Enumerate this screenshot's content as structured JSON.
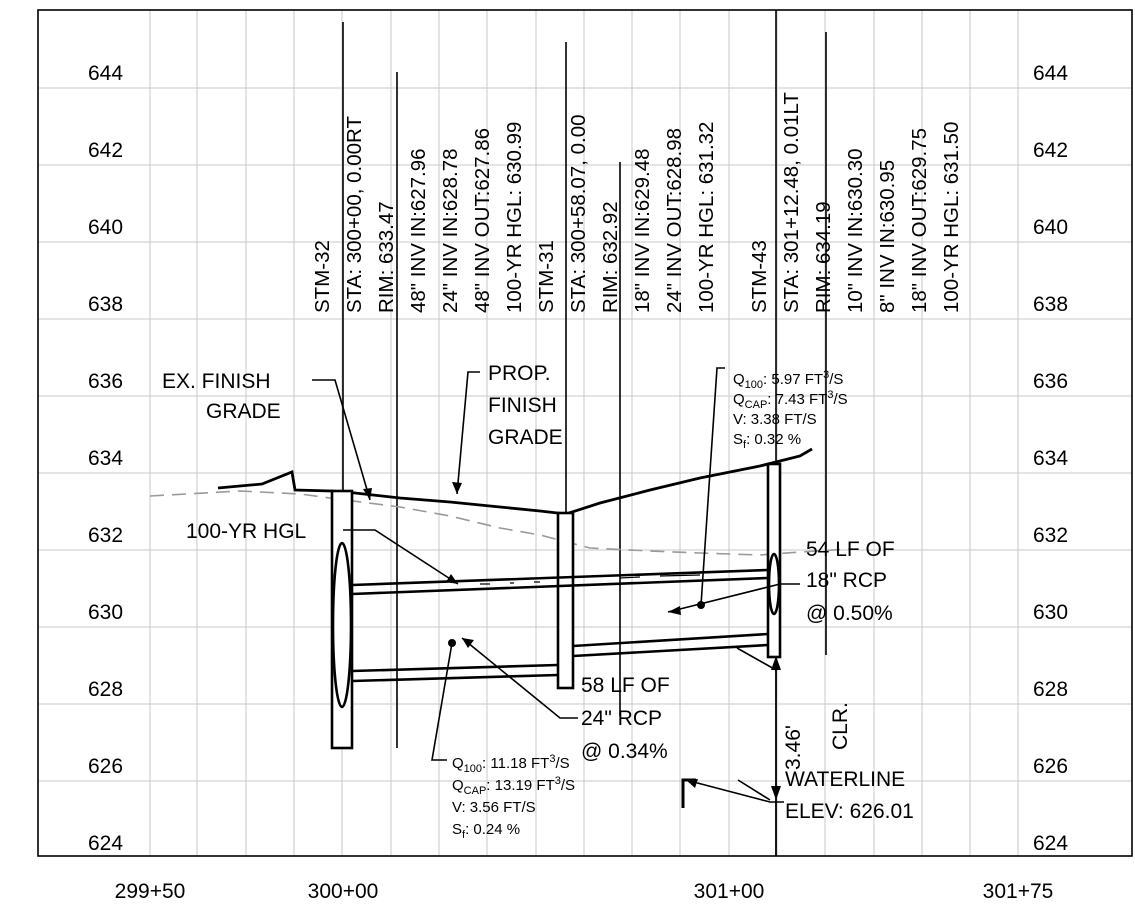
{
  "elevations": [
    "644",
    "642",
    "640",
    "638",
    "636",
    "634",
    "632",
    "630",
    "628",
    "626",
    "624"
  ],
  "stations": [
    "299+50",
    "300+00",
    "301+00",
    "301+75"
  ],
  "structures": [
    {
      "lines": [
        "STM-32",
        "STA: 300+00, 0.00RT",
        "RIM: 633.47",
        "48\" INV IN:627.96",
        "24\" INV IN:628.78",
        "48\" INV OUT:627.86",
        "100-YR HGL: 630.99"
      ]
    },
    {
      "lines": [
        "STM-31",
        "STA: 300+58.07, 0.00",
        "RIM: 632.92",
        "18\" INV IN:629.48",
        "24\" INV OUT:628.98",
        "100-YR HGL: 631.32"
      ]
    },
    {
      "lines": [
        "STM-43",
        "STA: 301+12.48, 0.01LT",
        "RIM: 634.19",
        "10\" INV IN:630.30",
        "8\" INV IN:630.95",
        "18\" INV OUT:629.75",
        "100-YR HGL: 631.50"
      ]
    }
  ],
  "labels": {
    "ex_grade": [
      "EX. FINISH",
      "GRADE"
    ],
    "prop_grade": [
      "PROP.",
      "FINISH",
      "GRADE"
    ],
    "hgl": "100-YR HGL",
    "pipe18": [
      "54 LF OF",
      "18\" RCP",
      "@ 0.50%"
    ],
    "pipe24": [
      "58 LF OF",
      "24\" RCP",
      "@ 0.34%"
    ],
    "clearance": [
      "3.46'",
      "CLR."
    ],
    "waterline": [
      "WATERLINE",
      "ELEV: 626.01"
    ]
  },
  "flow18": {
    "q100": "5.97",
    "qcap": "7.43",
    "v": "3.38",
    "sf": "0.32"
  },
  "flow24": {
    "q100": "11.18",
    "qcap": "13.19",
    "v": "3.56",
    "sf": "0.24"
  },
  "flow_text": {
    "q": "Q",
    "sub100": "100",
    "subcap": "CAP",
    "units": ": ",
    "ft": " FT",
    "cube": "3",
    "per_s": "/S",
    "v_prefix": "V: ",
    "v_units": " FT/S",
    "s": "S",
    "sub_f": "f",
    "pct": " %"
  }
}
